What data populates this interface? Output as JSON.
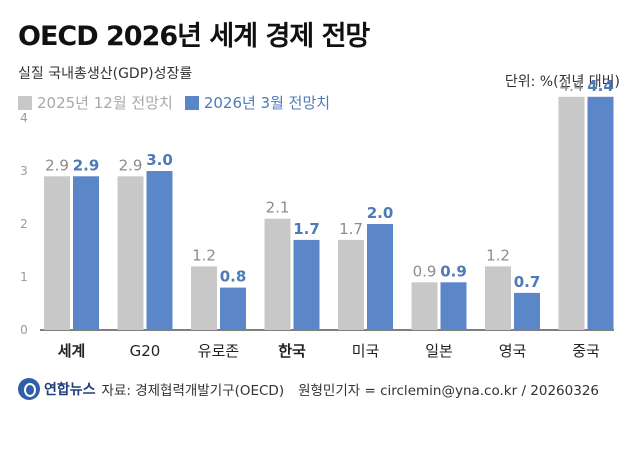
{
  "header": {
    "title": "OECD 2026년 세계 경제 전망",
    "subtitle": "실질 국내총생산(GDP)성장률",
    "unit": "단위: %(전년 대비)"
  },
  "colors": {
    "series_a": "#c8c8c8",
    "series_b": "#5b86c8",
    "label_a": "#8c8c8c",
    "label_b": "#4d7ab8"
  },
  "chart_data": {
    "type": "bar",
    "categories": [
      "세계",
      "G20",
      "유로존",
      "한국",
      "미국",
      "일본",
      "영국",
      "중국"
    ],
    "bold_categories": [
      "세계",
      "한국"
    ],
    "series": [
      {
        "name": "2025년 12월 전망치",
        "values": [
          2.9,
          2.9,
          1.2,
          2.1,
          1.7,
          0.9,
          1.2,
          4.4
        ]
      },
      {
        "name": "2026년 3월 전망치",
        "values": [
          2.9,
          3.0,
          0.8,
          1.7,
          2.0,
          0.9,
          0.7,
          4.4
        ]
      }
    ],
    "value_labels": [
      [
        "2.9",
        "2.9",
        "1.2",
        "2.1",
        "1.7",
        "0.9",
        "1.2",
        "4.4"
      ],
      [
        "2.9",
        "3.0",
        "0.8",
        "1.7",
        "2.0",
        "0.9",
        "0.7",
        "4.4"
      ]
    ],
    "yticks": [
      "0",
      "1",
      "2",
      "3",
      "4"
    ],
    "ylim": [
      0,
      4.5
    ],
    "legend": "top-left",
    "grid": false
  },
  "footer": {
    "logo_text": "연합뉴스",
    "source": "자료: 경제협력개발기구(OECD)",
    "credit": "원형민기자 = circlemin@yna.co.kr / 20260326"
  }
}
